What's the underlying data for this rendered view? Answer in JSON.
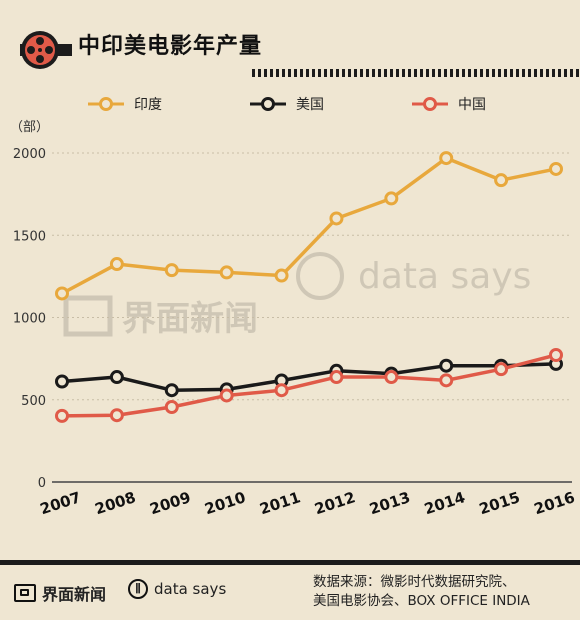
{
  "header": {
    "title": "中印美电影年产量"
  },
  "chart_data": {
    "type": "line",
    "title": "中印美电影年产量",
    "ylabel": "（部）",
    "xlabel": "",
    "ylim": [
      0,
      2000
    ],
    "yticks": [
      0,
      500,
      1000,
      1500,
      2000
    ],
    "x": [
      "2007",
      "2008",
      "2009",
      "2010",
      "2011",
      "2012",
      "2013",
      "2014",
      "2015",
      "2016"
    ],
    "grid": "horizontal-dotted",
    "legend": "top",
    "series": [
      {
        "name": "印度",
        "color": "#e8a83c",
        "values": [
          1146,
          1325,
          1288,
          1274,
          1255,
          1602,
          1724,
          1969,
          1835,
          1903
        ]
      },
      {
        "name": "美国",
        "color": "#1a1a1a",
        "values": [
          611,
          638,
          558,
          563,
          617,
          676,
          659,
          707,
          707,
          718
        ]
      },
      {
        "name": "中国",
        "color": "#e05a48",
        "values": [
          402,
          406,
          456,
          526,
          558,
          638,
          638,
          618,
          686,
          772
        ]
      }
    ]
  },
  "watermark": {
    "brand": "界面新闻",
    "datasays": "data says"
  },
  "footer": {
    "brand": "界面新闻",
    "datasays": "data says",
    "source_line1": "数据来源：微影时代数据研究院、",
    "source_line2": "美国电影协会、BOX OFFICE INDIA"
  }
}
